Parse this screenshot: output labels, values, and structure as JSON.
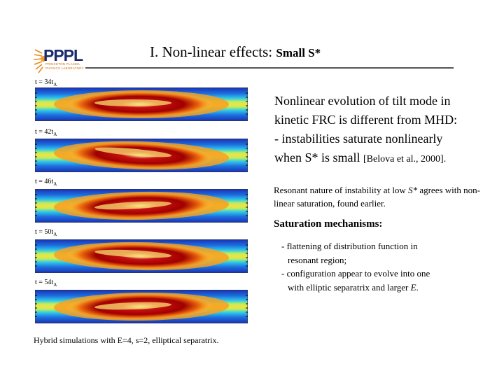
{
  "logo": {
    "text": "PPPL",
    "sub_lines": [
      "PRINCETON PLASMA",
      "PHYSICS LABORATORY"
    ]
  },
  "title": {
    "main": "I. Non-linear effects: ",
    "sub": "Small S*"
  },
  "frames": [
    {
      "t": "t = 34t",
      "sub": "A",
      "tilt": 0
    },
    {
      "t": "t = 42t",
      "sub": "A",
      "tilt": 5
    },
    {
      "t": "t = 46t",
      "sub": "A",
      "tilt": -3
    },
    {
      "t": "t = 50t",
      "sub": "A",
      "tilt": 3
    },
    {
      "t": "t = 54t",
      "sub": "A",
      "tilt": -2
    }
  ],
  "text": {
    "p1_line1": "Nonlinear evolution of tilt mode in",
    "p1_line2": "kinetic FRC is different from MHD:",
    "p1_line3": "- instabilities saturate nonlinearly",
    "p1_line4": "when S* is small ",
    "p1_cite": "[Belova et al., 2000].",
    "p2_a": "Resonant nature of instability at low ",
    "p2_b": "S*",
    "p2_c": " agrees with non-linear saturation, found earlier.",
    "p3": "Saturation mechanisms:",
    "li1_a": "- flattening of distribution function in",
    "li1_b": "resonant region;",
    "li2_a": "- configuration appear to evolve into one",
    "li2_b": "with elliptic separatrix and larger ",
    "li2_c": "E",
    "li2_d": ".",
    "caption": "Hybrid simulations with E=4, s=2,  elliptical separatrix."
  },
  "colors": {
    "title_rule": "#555555",
    "logo_blue": "#1a2a6c",
    "logo_orange": "#d06a10"
  }
}
